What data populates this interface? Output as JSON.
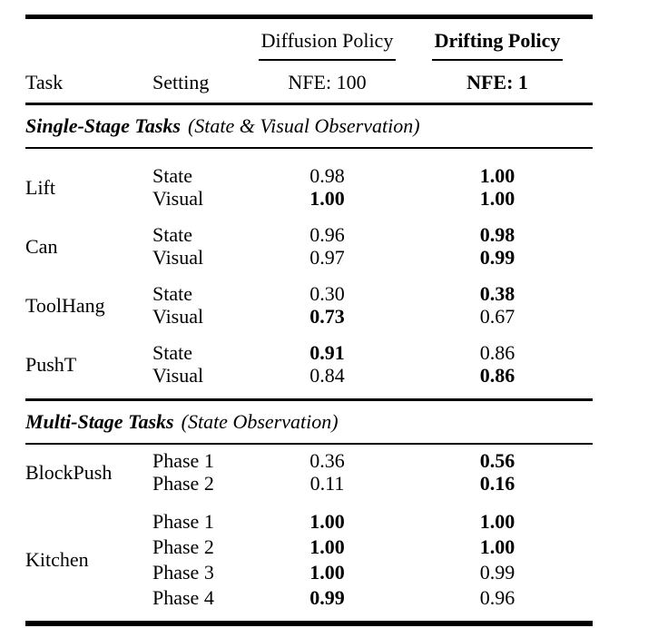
{
  "colors": {
    "ink": "#000000",
    "background": "#ffffff"
  },
  "table": {
    "columns": {
      "task_header": "Task",
      "setting_header": "Setting",
      "policies": [
        {
          "name": "Diffusion Policy",
          "nfe": "NFE: 100",
          "bold": false
        },
        {
          "name": "Drifting Policy",
          "nfe": "NFE: 1",
          "bold": true
        }
      ]
    },
    "sections": [
      {
        "title": "Single-Stage Tasks",
        "note": "(State & Visual Observation)",
        "groups": [
          {
            "task": "Lift",
            "rows": [
              {
                "setting": "State",
                "diffusion": {
                  "value": "0.98",
                  "bold": false
                },
                "drifting": {
                  "value": "1.00",
                  "bold": true
                }
              },
              {
                "setting": "Visual",
                "diffusion": {
                  "value": "1.00",
                  "bold": true
                },
                "drifting": {
                  "value": "1.00",
                  "bold": true
                }
              }
            ]
          },
          {
            "task": "Can",
            "rows": [
              {
                "setting": "State",
                "diffusion": {
                  "value": "0.96",
                  "bold": false
                },
                "drifting": {
                  "value": "0.98",
                  "bold": true
                }
              },
              {
                "setting": "Visual",
                "diffusion": {
                  "value": "0.97",
                  "bold": false
                },
                "drifting": {
                  "value": "0.99",
                  "bold": true
                }
              }
            ]
          },
          {
            "task": "ToolHang",
            "rows": [
              {
                "setting": "State",
                "diffusion": {
                  "value": "0.30",
                  "bold": false
                },
                "drifting": {
                  "value": "0.38",
                  "bold": true
                }
              },
              {
                "setting": "Visual",
                "diffusion": {
                  "value": "0.73",
                  "bold": true
                },
                "drifting": {
                  "value": "0.67",
                  "bold": false
                }
              }
            ]
          },
          {
            "task": "PushT",
            "rows": [
              {
                "setting": "State",
                "diffusion": {
                  "value": "0.91",
                  "bold": true
                },
                "drifting": {
                  "value": "0.86",
                  "bold": false
                }
              },
              {
                "setting": "Visual",
                "diffusion": {
                  "value": "0.84",
                  "bold": false
                },
                "drifting": {
                  "value": "0.86",
                  "bold": true
                }
              }
            ]
          }
        ]
      },
      {
        "title": "Multi-Stage Tasks",
        "note": "(State Observation)",
        "groups": [
          {
            "task": "BlockPush",
            "rows": [
              {
                "setting": "Phase 1",
                "diffusion": {
                  "value": "0.36",
                  "bold": false
                },
                "drifting": {
                  "value": "0.56",
                  "bold": true
                }
              },
              {
                "setting": "Phase 2",
                "diffusion": {
                  "value": "0.11",
                  "bold": false
                },
                "drifting": {
                  "value": "0.16",
                  "bold": true
                }
              }
            ]
          },
          {
            "task": "Kitchen",
            "rows": [
              {
                "setting": "Phase 1",
                "diffusion": {
                  "value": "1.00",
                  "bold": true
                },
                "drifting": {
                  "value": "1.00",
                  "bold": true
                }
              },
              {
                "setting": "Phase 2",
                "diffusion": {
                  "value": "1.00",
                  "bold": true
                },
                "drifting": {
                  "value": "1.00",
                  "bold": true
                }
              },
              {
                "setting": "Phase 3",
                "diffusion": {
                  "value": "1.00",
                  "bold": true
                },
                "drifting": {
                  "value": "0.99",
                  "bold": false
                }
              },
              {
                "setting": "Phase 4",
                "diffusion": {
                  "value": "0.99",
                  "bold": true
                },
                "drifting": {
                  "value": "0.96",
                  "bold": false
                }
              }
            ]
          }
        ]
      }
    ]
  }
}
